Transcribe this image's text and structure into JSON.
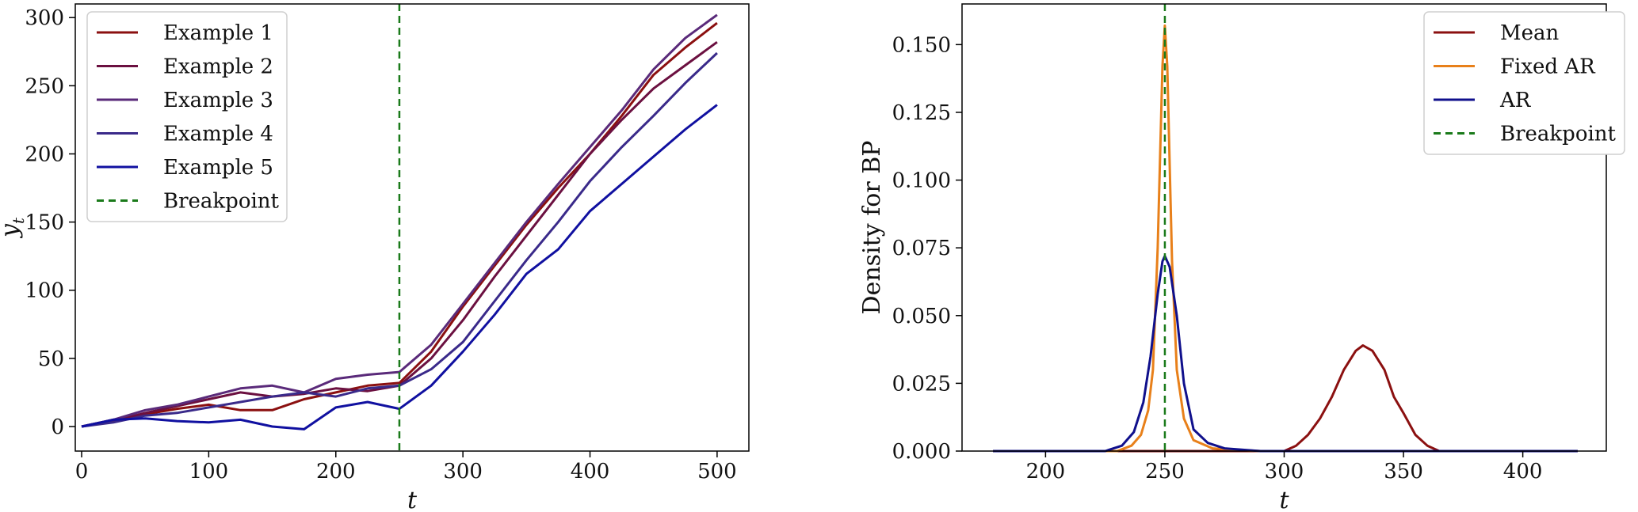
{
  "chart_data": [
    {
      "type": "line",
      "xlabel": "t",
      "ylabel": "y",
      "ylabel_sub": "t",
      "xlim": [
        -5,
        525
      ],
      "ylim": [
        -18,
        310
      ],
      "xticks": [
        0,
        100,
        200,
        300,
        400,
        500
      ],
      "yticks": [
        0,
        50,
        100,
        150,
        200,
        250,
        300
      ],
      "legend_position": "upper-left",
      "grid": false,
      "series": [
        {
          "name": "Example 1",
          "color": "#8b1010",
          "points": [
            [
              0,
              0
            ],
            [
              25,
              5
            ],
            [
              50,
              9
            ],
            [
              75,
              13
            ],
            [
              100,
              16
            ],
            [
              125,
              12
            ],
            [
              150,
              12
            ],
            [
              175,
              20
            ],
            [
              200,
              25
            ],
            [
              225,
              30
            ],
            [
              250,
              32
            ],
            [
              275,
              55
            ],
            [
              300,
              88
            ],
            [
              325,
              118
            ],
            [
              350,
              148
            ],
            [
              375,
              175
            ],
            [
              400,
              200
            ],
            [
              425,
              228
            ],
            [
              450,
              258
            ],
            [
              475,
              278
            ],
            [
              500,
              296
            ]
          ]
        },
        {
          "name": "Example 2",
          "color": "#6b1040",
          "points": [
            [
              0,
              0
            ],
            [
              25,
              4
            ],
            [
              50,
              10
            ],
            [
              75,
              15
            ],
            [
              100,
              20
            ],
            [
              125,
              25
            ],
            [
              150,
              22
            ],
            [
              175,
              24
            ],
            [
              200,
              28
            ],
            [
              225,
              26
            ],
            [
              250,
              30
            ],
            [
              275,
              50
            ],
            [
              300,
              78
            ],
            [
              325,
              110
            ],
            [
              350,
              140
            ],
            [
              375,
              170
            ],
            [
              400,
              200
            ],
            [
              425,
              225
            ],
            [
              450,
              248
            ],
            [
              475,
              265
            ],
            [
              500,
              282
            ]
          ]
        },
        {
          "name": "Example 3",
          "color": "#5a2a7a",
          "points": [
            [
              0,
              0
            ],
            [
              25,
              5
            ],
            [
              50,
              12
            ],
            [
              75,
              16
            ],
            [
              100,
              22
            ],
            [
              125,
              28
            ],
            [
              150,
              30
            ],
            [
              175,
              25
            ],
            [
              200,
              35
            ],
            [
              225,
              38
            ],
            [
              250,
              40
            ],
            [
              275,
              60
            ],
            [
              300,
              90
            ],
            [
              325,
              120
            ],
            [
              350,
              150
            ],
            [
              375,
              178
            ],
            [
              400,
              205
            ],
            [
              425,
              232
            ],
            [
              450,
              262
            ],
            [
              475,
              285
            ],
            [
              500,
              302
            ]
          ]
        },
        {
          "name": "Example 4",
          "color": "#3a2a8a",
          "points": [
            [
              0,
              0
            ],
            [
              25,
              3
            ],
            [
              50,
              8
            ],
            [
              75,
              10
            ],
            [
              100,
              14
            ],
            [
              125,
              18
            ],
            [
              150,
              22
            ],
            [
              175,
              25
            ],
            [
              200,
              22
            ],
            [
              225,
              28
            ],
            [
              250,
              30
            ],
            [
              275,
              42
            ],
            [
              300,
              62
            ],
            [
              325,
              92
            ],
            [
              350,
              122
            ],
            [
              375,
              150
            ],
            [
              400,
              180
            ],
            [
              425,
              205
            ],
            [
              450,
              228
            ],
            [
              475,
              252
            ],
            [
              500,
              274
            ]
          ]
        },
        {
          "name": "Example 5",
          "color": "#1010a0",
          "points": [
            [
              0,
              0
            ],
            [
              25,
              5
            ],
            [
              50,
              6
            ],
            [
              75,
              4
            ],
            [
              100,
              3
            ],
            [
              125,
              5
            ],
            [
              150,
              0
            ],
            [
              175,
              -2
            ],
            [
              200,
              14
            ],
            [
              225,
              18
            ],
            [
              250,
              13
            ],
            [
              275,
              30
            ],
            [
              300,
              55
            ],
            [
              325,
              82
            ],
            [
              350,
              112
            ],
            [
              375,
              130
            ],
            [
              400,
              158
            ],
            [
              425,
              178
            ],
            [
              450,
              198
            ],
            [
              475,
              218
            ],
            [
              500,
              236
            ]
          ]
        }
      ],
      "breakpoint": {
        "name": "Breakpoint",
        "x": 250,
        "color": "#1a7a1a"
      }
    },
    {
      "type": "line",
      "xlabel": "t",
      "ylabel": "Density for BP",
      "xlim": [
        165,
        435
      ],
      "ylim": [
        0,
        0.165
      ],
      "xticks": [
        200,
        250,
        300,
        350,
        400
      ],
      "yticks": [
        "0.000",
        "0.025",
        "0.050",
        "0.075",
        "0.100",
        "0.125",
        "0.150"
      ],
      "legend_position": "upper-right",
      "grid": false,
      "series": [
        {
          "name": "Mean",
          "color": "#8b1010",
          "points": [
            [
              178,
              0
            ],
            [
              200,
              0
            ],
            [
              280,
              0
            ],
            [
              300,
              0
            ],
            [
              305,
              0.002
            ],
            [
              310,
              0.006
            ],
            [
              315,
              0.012
            ],
            [
              320,
              0.02
            ],
            [
              325,
              0.03
            ],
            [
              330,
              0.037
            ],
            [
              333,
              0.039
            ],
            [
              337,
              0.037
            ],
            [
              342,
              0.03
            ],
            [
              346,
              0.02
            ],
            [
              350,
              0.014
            ],
            [
              355,
              0.006
            ],
            [
              360,
              0.002
            ],
            [
              365,
              0
            ],
            [
              380,
              0
            ],
            [
              423,
              0
            ]
          ]
        },
        {
          "name": "Fixed AR",
          "color": "#e8801a",
          "points": [
            [
              178,
              0
            ],
            [
              230,
              0
            ],
            [
              236,
              0.002
            ],
            [
              240,
              0.006
            ],
            [
              243,
              0.015
            ],
            [
              245,
              0.03
            ],
            [
              247,
              0.075
            ],
            [
              249,
              0.142
            ],
            [
              250,
              0.157
            ],
            [
              251,
              0.142
            ],
            [
              253,
              0.07
            ],
            [
              255,
              0.03
            ],
            [
              258,
              0.012
            ],
            [
              262,
              0.004
            ],
            [
              270,
              0.001
            ],
            [
              290,
              0
            ],
            [
              423,
              0
            ]
          ]
        },
        {
          "name": "AR",
          "color": "#10108c",
          "points": [
            [
              178,
              0
            ],
            [
              225,
              0
            ],
            [
              232,
              0.002
            ],
            [
              237,
              0.007
            ],
            [
              241,
              0.018
            ],
            [
              244,
              0.035
            ],
            [
              247,
              0.058
            ],
            [
              249,
              0.07
            ],
            [
              250,
              0.072
            ],
            [
              252,
              0.068
            ],
            [
              255,
              0.05
            ],
            [
              258,
              0.025
            ],
            [
              262,
              0.008
            ],
            [
              268,
              0.003
            ],
            [
              275,
              0.001
            ],
            [
              290,
              0
            ],
            [
              423,
              0
            ]
          ]
        }
      ],
      "breakpoint": {
        "name": "Breakpoint",
        "x": 250,
        "color": "#1a7a1a"
      }
    }
  ]
}
